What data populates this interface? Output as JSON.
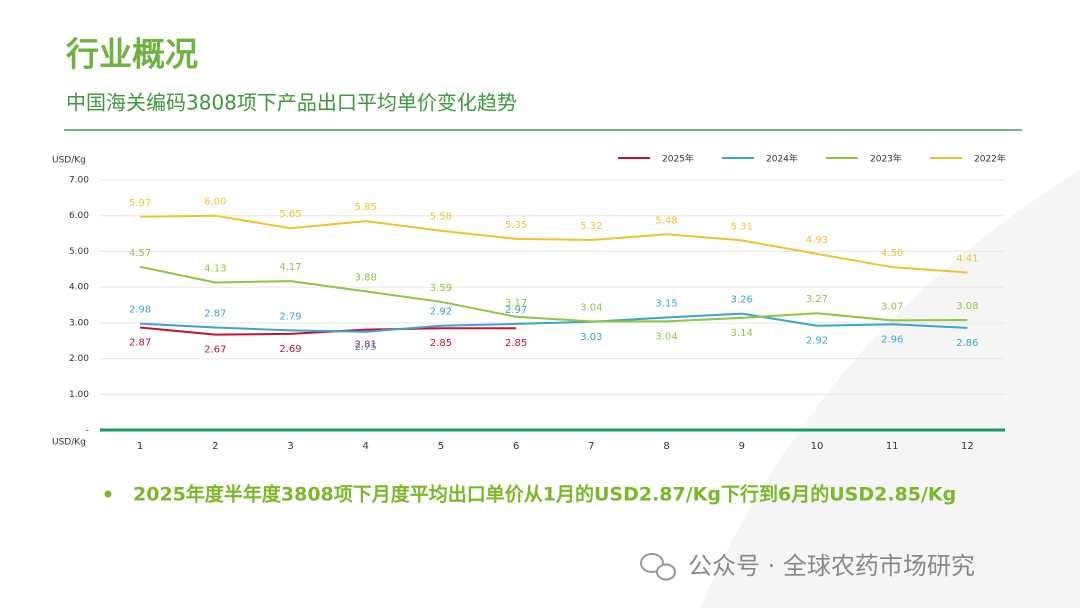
{
  "title": "行业概况",
  "subtitle": "中国海关编码3808项下产品出口平均单价变化趋势",
  "chart_data": {
    "type": "line",
    "y_label": "USD/Kg",
    "x_label": "USD/Kg",
    "categories": [
      "1",
      "2",
      "3",
      "4",
      "5",
      "6",
      "7",
      "8",
      "9",
      "10",
      "11",
      "12"
    ],
    "ylim": [
      0,
      7
    ],
    "yticks": [
      {
        "value": 0,
        "label": "-"
      },
      {
        "value": 1,
        "label": "1.00"
      },
      {
        "value": 2,
        "label": "2.00"
      },
      {
        "value": 3,
        "label": "3.00"
      },
      {
        "value": 4,
        "label": "4.00"
      },
      {
        "value": 5,
        "label": "5.00"
      },
      {
        "value": 6,
        "label": "6.00"
      },
      {
        "value": 7,
        "label": "7.00"
      }
    ],
    "grid": true,
    "legend": "top-right",
    "series": [
      {
        "name": "2025年",
        "color": "#c8102e",
        "values": [
          2.87,
          2.67,
          2.69,
          2.81,
          2.85,
          2.85,
          null,
          null,
          null,
          null,
          null,
          null
        ],
        "value_labels": [
          "2.87",
          "2.67",
          "2.69",
          "2.81",
          "2.85",
          "2.85",
          null,
          null,
          null,
          null,
          null,
          null
        ]
      },
      {
        "name": "2024年",
        "color": "#3aa3d4",
        "values": [
          2.98,
          2.87,
          2.79,
          2.75,
          2.92,
          2.97,
          3.03,
          3.15,
          3.26,
          2.92,
          2.96,
          2.86
        ],
        "value_labels": [
          "2.98",
          "2.87",
          "2.79",
          "2.75",
          "2.92",
          "2.97",
          "3.03",
          "3.15",
          "3.26",
          "2.92",
          "2.96",
          "2.86"
        ]
      },
      {
        "name": "2023年",
        "color": "#8cc63f",
        "values": [
          4.57,
          4.13,
          4.17,
          3.88,
          3.59,
          3.17,
          3.04,
          3.04,
          3.14,
          3.27,
          3.07,
          3.08
        ],
        "value_labels": [
          "4.57",
          "4.13",
          "4.17",
          "3.88",
          "3.59",
          "3.17",
          "3.04",
          "3.04",
          "3.14",
          "3.27",
          "3.07",
          "3.08"
        ]
      },
      {
        "name": "2022年",
        "color": "#f2c12e",
        "values": [
          5.97,
          6.0,
          5.65,
          5.85,
          5.58,
          5.35,
          5.32,
          5.48,
          5.31,
          4.93,
          4.56,
          4.41
        ],
        "value_labels": [
          "5.97",
          "6.00",
          "5.65",
          "5.85",
          "5.58",
          "5.35",
          "5.32",
          "5.48",
          "5.31",
          "4.93",
          "4.56",
          "4.41"
        ]
      }
    ]
  },
  "bullet": "2025年度半年度3808项下月度平均出口单价从1月的USD2.87/Kg下行到6月的USD2.85/Kg",
  "watermark": "公众号 · 全球农药市场研究"
}
